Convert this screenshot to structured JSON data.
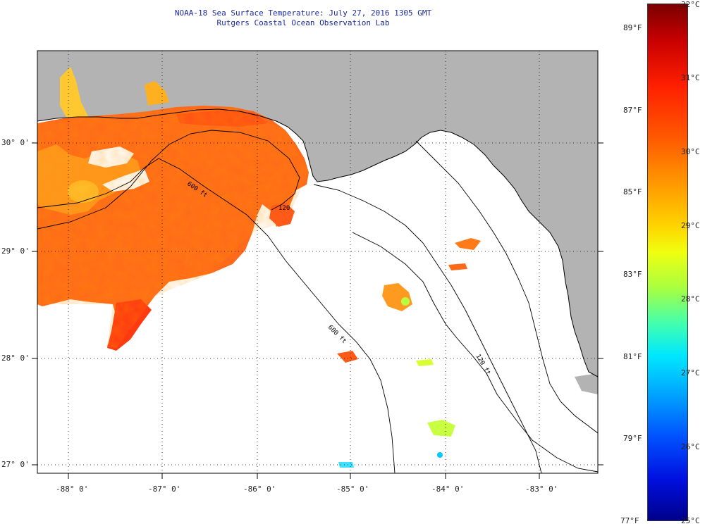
{
  "header": {
    "title": "NOAA-18 Sea Surface Temperature:  July 27, 2016 1305 GMT",
    "subtitle": "Rutgers Coastal Ocean Observation Lab"
  },
  "axes": {
    "lon_labels": [
      "-88° 0'",
      "-87° 0'",
      "-86° 0'",
      "-85° 0'",
      "-84° 0'",
      "-83° 0'"
    ],
    "lat_labels": [
      "30° 0'",
      "29° 0'",
      "28° 0'",
      "27° 0'"
    ]
  },
  "contours": {
    "c120": "120",
    "c600a": "600 ft",
    "c600b": "600 ft",
    "c120b": "120 ft"
  },
  "colorbar": {
    "fahrenheit": [
      "89°F",
      "87°F",
      "85°F",
      "83°F",
      "81°F",
      "79°F",
      "77°F"
    ],
    "celsius": [
      "32°C",
      "31°C",
      "30°C",
      "29°C",
      "28°C",
      "27°C",
      "26°C",
      "25°C"
    ]
  },
  "colors": {
    "land": "#b3b3b3",
    "sst_warm": "#ff6a1a",
    "sst_hot": "#ff3a10",
    "sst_mid": "#ff9a20",
    "title": "#1a2a9a"
  }
}
